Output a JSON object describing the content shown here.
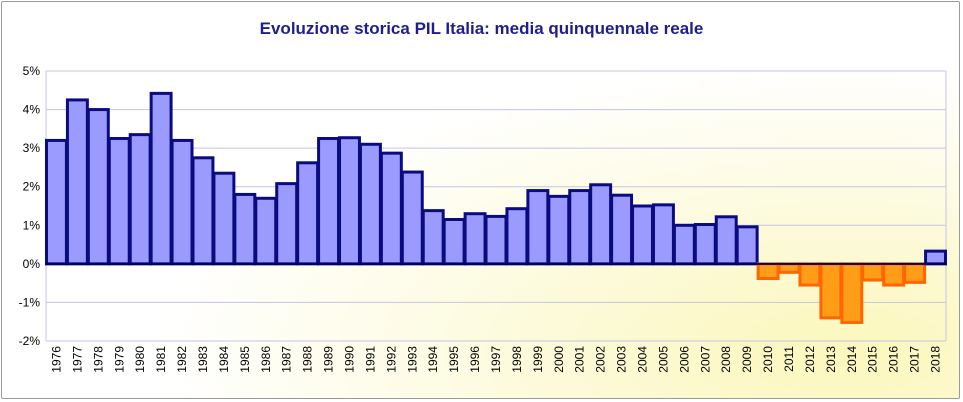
{
  "chart_data": {
    "type": "bar",
    "title": "Evoluzione storica PIL Italia: media quinquennale reale",
    "xlabel": "",
    "ylabel": "",
    "categories": [
      "1976",
      "1977",
      "1978",
      "1979",
      "1980",
      "1981",
      "1982",
      "1983",
      "1984",
      "1985",
      "1986",
      "1987",
      "1988",
      "1989",
      "1990",
      "1991",
      "1992",
      "1993",
      "1994",
      "1995",
      "1996",
      "1997",
      "1998",
      "1999",
      "2000",
      "2001",
      "2002",
      "2003",
      "2004",
      "2005",
      "2006",
      "2007",
      "2008",
      "2009",
      "2010",
      "2011",
      "2012",
      "2013",
      "2014",
      "2015",
      "2016",
      "2017",
      "2018"
    ],
    "values": [
      3.2,
      4.25,
      4.0,
      3.25,
      3.35,
      4.42,
      3.2,
      2.75,
      2.35,
      1.8,
      1.7,
      2.08,
      2.62,
      3.25,
      3.27,
      3.1,
      2.87,
      2.38,
      1.38,
      1.15,
      1.3,
      1.23,
      1.43,
      1.9,
      1.75,
      1.9,
      2.05,
      1.78,
      1.5,
      1.53,
      1.0,
      1.02,
      1.22,
      0.96,
      -0.38,
      -0.22,
      -0.55,
      -1.4,
      -1.52,
      -0.42,
      -0.55,
      -0.48,
      0.33
    ],
    "ylim": [
      -2,
      5
    ],
    "yticks": [
      "-2%",
      "-1%",
      "0%",
      "1%",
      "2%",
      "3%",
      "4%",
      "5%"
    ],
    "grid": true,
    "legend": "none",
    "colors": {
      "positive_fill": "#9b9bff",
      "negative_fill": "#ff9d19",
      "positive_stroke": "#0b0b80",
      "negative_stroke": "#ff6600",
      "gridline": "#c4c4e8",
      "axis_text": "#000000",
      "title": "#1f1f8c"
    }
  }
}
